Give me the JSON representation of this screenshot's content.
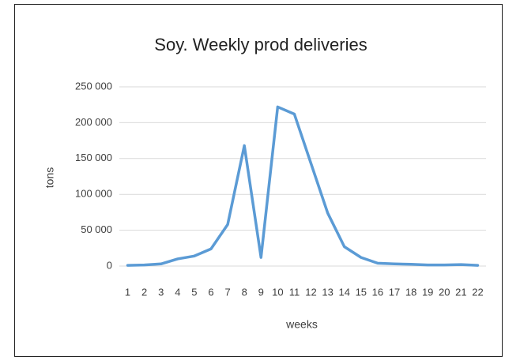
{
  "chart_data": {
    "type": "line",
    "title": "Soy. Weekly prod deliveries",
    "x_label": "weeks",
    "y_label": "tons",
    "categories": [
      "1",
      "2",
      "3",
      "4",
      "5",
      "6",
      "7",
      "8",
      "9",
      "10",
      "11",
      "12",
      "13",
      "14",
      "15",
      "16",
      "17",
      "18",
      "19",
      "20",
      "21",
      "22"
    ],
    "series": [
      {
        "name": "Soy",
        "color": "#5b9bd5",
        "values": [
          1000,
          1500,
          3000,
          10000,
          14000,
          24000,
          58000,
          168000,
          12000,
          222000,
          212000,
          143000,
          74000,
          27000,
          12000,
          4000,
          3000,
          2500,
          1500,
          1500,
          2000,
          1000
        ]
      }
    ],
    "ylim": [
      0,
      250000
    ],
    "yticks": [
      0,
      {
        "value": 50000,
        "label": "50 000"
      },
      {
        "value": 100000,
        "label": "100 000"
      },
      {
        "value": 150000,
        "label": "150 000"
      },
      {
        "value": 200000,
        "label": "200 000"
      },
      {
        "value": 250000,
        "label": "250 000"
      }
    ],
    "grid": true
  }
}
